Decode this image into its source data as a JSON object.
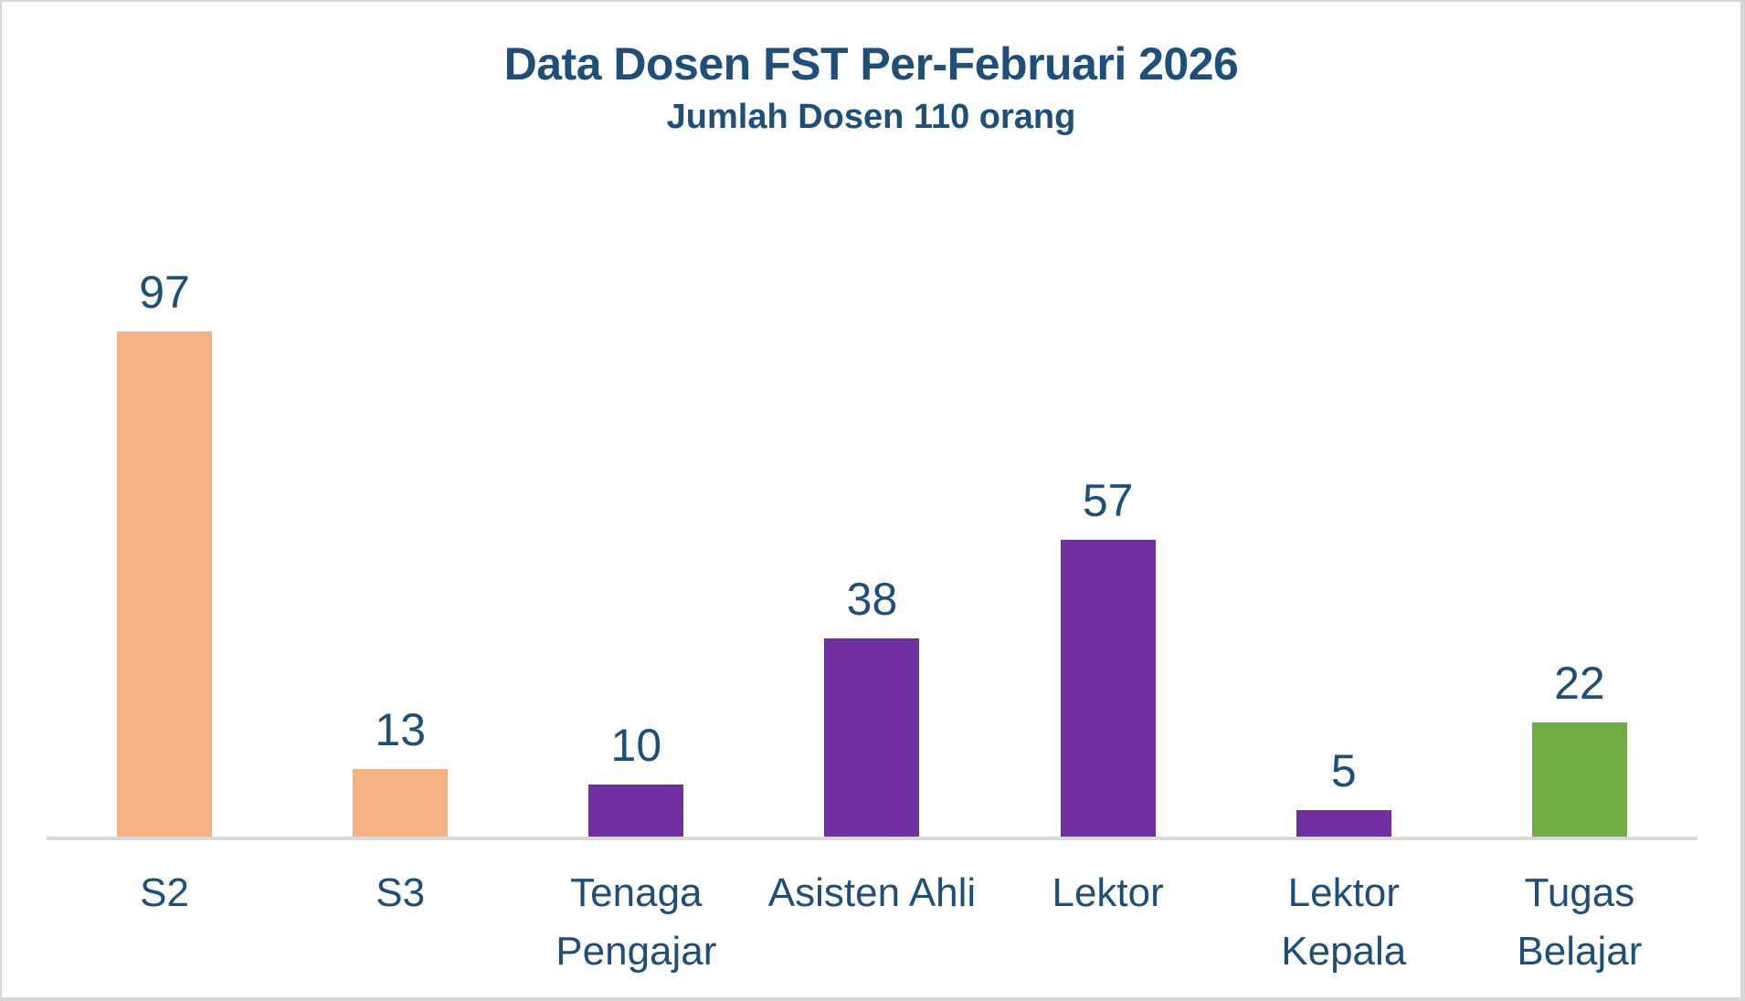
{
  "chart": {
    "title": "Data Dosen FST Per-Februari 2026",
    "subtitle": "Jumlah Dosen 110 orang"
  },
  "chart_data": {
    "type": "bar",
    "title": "Data Dosen FST Per-Februari 2026",
    "subtitle": "Jumlah Dosen 110 orang",
    "categories": [
      "S2",
      "S3",
      "Tenaga Pengajar",
      "Asisten Ahli",
      "Lektor",
      "Lektor Kepala",
      "Tugas Belajar"
    ],
    "category_lines": [
      [
        "S2"
      ],
      [
        "S3"
      ],
      [
        "Tenaga",
        "Pengajar"
      ],
      [
        "Asisten Ahli"
      ],
      [
        "Lektor"
      ],
      [
        "Lektor",
        "Kepala"
      ],
      [
        "Tugas",
        "Belajar"
      ]
    ],
    "values": [
      97,
      13,
      10,
      38,
      57,
      5,
      22
    ],
    "data_labels": [
      "97",
      "13",
      "10",
      "38",
      "57",
      "5",
      "22"
    ],
    "bar_colors": [
      "#F4B183",
      "#F4B183",
      "#7030A0",
      "#7030A0",
      "#7030A0",
      "#7030A0",
      "#70AD47"
    ],
    "ylim": [
      0,
      100
    ],
    "grid": false,
    "legend": false,
    "xlabel": "",
    "ylabel": "",
    "text_color": "#1F4E79",
    "axis_line_color": "#D9D9D9",
    "canvas_border_color": "#d7d7d7",
    "background_color": "#ffffff"
  }
}
